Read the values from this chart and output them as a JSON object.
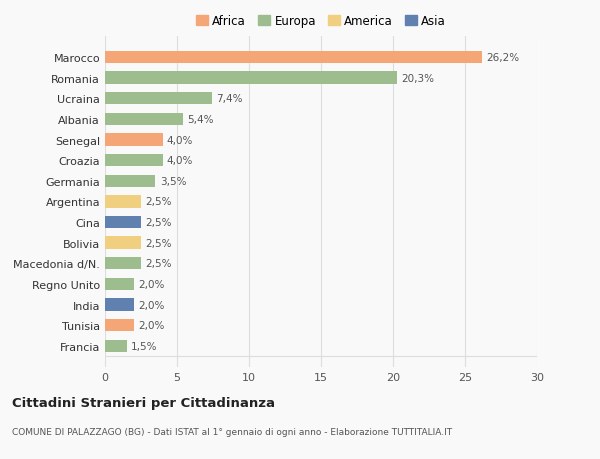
{
  "countries": [
    "Marocco",
    "Romania",
    "Ucraina",
    "Albania",
    "Senegal",
    "Croazia",
    "Germania",
    "Argentina",
    "Cina",
    "Bolivia",
    "Macedonia d/N.",
    "Regno Unito",
    "India",
    "Tunisia",
    "Francia"
  ],
  "values": [
    26.2,
    20.3,
    7.4,
    5.4,
    4.0,
    4.0,
    3.5,
    2.5,
    2.5,
    2.5,
    2.5,
    2.0,
    2.0,
    2.0,
    1.5
  ],
  "labels": [
    "26,2%",
    "20,3%",
    "7,4%",
    "5,4%",
    "4,0%",
    "4,0%",
    "3,5%",
    "2,5%",
    "2,5%",
    "2,5%",
    "2,5%",
    "2,0%",
    "2,0%",
    "2,0%",
    "1,5%"
  ],
  "colors": [
    "#F4A676",
    "#9EBD8E",
    "#9EBD8E",
    "#9EBD8E",
    "#F4A676",
    "#9EBD8E",
    "#9EBD8E",
    "#F0D080",
    "#6080B0",
    "#F0D080",
    "#9EBD8E",
    "#9EBD8E",
    "#6080B0",
    "#F4A676",
    "#9EBD8E"
  ],
  "continent_colors": {
    "Africa": "#F4A676",
    "Europa": "#9EBD8E",
    "America": "#F0D080",
    "Asia": "#6080B0"
  },
  "xlim": [
    0,
    30
  ],
  "xticks": [
    0,
    5,
    10,
    15,
    20,
    25,
    30
  ],
  "title": "Cittadini Stranieri per Cittadinanza",
  "subtitle": "COMUNE DI PALAZZAGO (BG) - Dati ISTAT al 1° gennaio di ogni anno - Elaborazione TUTTITALIA.IT",
  "bg_color": "#f9f9f9",
  "grid_color": "#dddddd"
}
